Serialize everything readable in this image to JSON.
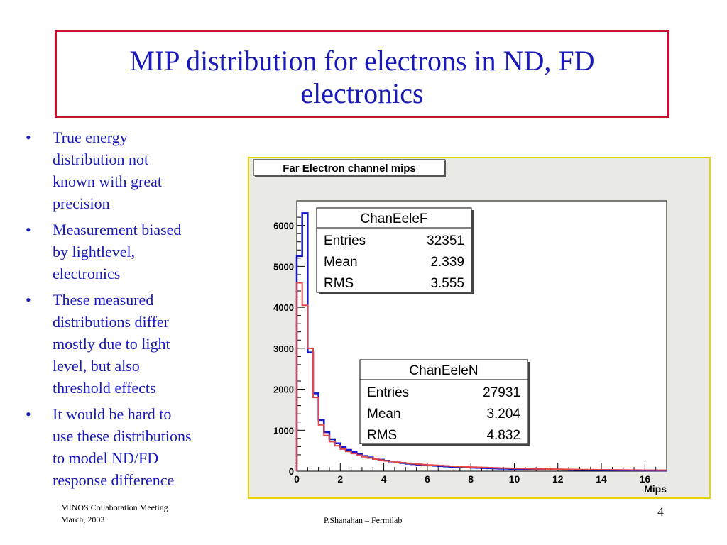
{
  "slide": {
    "title_line1": "MIP distribution for electrons in ND, FD",
    "title_line2": "electronics",
    "bullets": [
      [
        "True energy",
        "distribution not",
        "known with great",
        "precision"
      ],
      [
        "Measurement biased",
        "by lightlevel,",
        "electronics"
      ],
      [
        "These measured",
        "distributions differ",
        "mostly due to light",
        "level, but also",
        "threshold effects"
      ],
      [
        "It would be hard to",
        "use these distributions",
        "to model ND/FD",
        "response difference"
      ]
    ],
    "footer_line1": "MINOS Collaboration Meeting",
    "footer_line2": "March, 2003",
    "footer_center": "P.Shanahan – Fermilab",
    "page_number": "4"
  },
  "chart_data": {
    "type": "line",
    "title": "Far Electron channel mips",
    "xlabel": "Mips",
    "ylabel": "",
    "xlim": [
      0,
      17
    ],
    "ylim": [
      0,
      6600
    ],
    "xticks": [
      "0",
      "2",
      "4",
      "6",
      "8",
      "10",
      "12",
      "14",
      "16"
    ],
    "yticks": [
      "0",
      "1000",
      "2000",
      "3000",
      "4000",
      "5000",
      "6000"
    ],
    "bin_width": 0.25,
    "series": [
      {
        "name": "ChanEeleF",
        "color": "#1515c8",
        "values": [
          5250,
          6300,
          2900,
          1900,
          1250,
          950,
          780,
          680,
          590,
          520,
          470,
          420,
          370,
          335,
          305,
          280,
          255,
          235,
          215,
          200,
          185,
          172,
          160,
          150,
          140,
          132,
          124,
          116,
          109,
          102,
          96,
          90,
          85,
          80,
          75,
          71,
          67,
          63,
          60,
          57,
          54,
          51,
          48,
          46,
          44,
          42,
          40,
          38,
          36,
          34,
          32,
          31,
          30,
          29,
          28,
          27,
          26,
          25,
          24,
          23,
          22,
          21,
          20,
          19,
          18,
          18,
          17,
          16
        ]
      },
      {
        "name": "ChanEeleN",
        "color": "#e04848",
        "values": [
          4600,
          4050,
          3000,
          1800,
          1130,
          870,
          720,
          620,
          540,
          480,
          430,
          390,
          350,
          320,
          295,
          272,
          252,
          235,
          220,
          206,
          194,
          182,
          171,
          161,
          152,
          144,
          136,
          129,
          122,
          116,
          110,
          105,
          100,
          95,
          90,
          86,
          82,
          78,
          74,
          71,
          68,
          65,
          62,
          59,
          56,
          54,
          52,
          50,
          48,
          46,
          44,
          42,
          40,
          38,
          36,
          35,
          34,
          33,
          32,
          31,
          30,
          29,
          28,
          27,
          26,
          25,
          24,
          23
        ]
      }
    ],
    "stats": [
      {
        "name": "ChanEeleF",
        "entries": "32351",
        "mean": "2.339",
        "rms": "3.555"
      },
      {
        "name": "ChanEeleN",
        "entries": "27931",
        "mean": "3.204",
        "rms": "4.832"
      }
    ],
    "stat_labels": {
      "entries": "Entries",
      "mean": "Mean",
      "rms": "RMS"
    }
  }
}
